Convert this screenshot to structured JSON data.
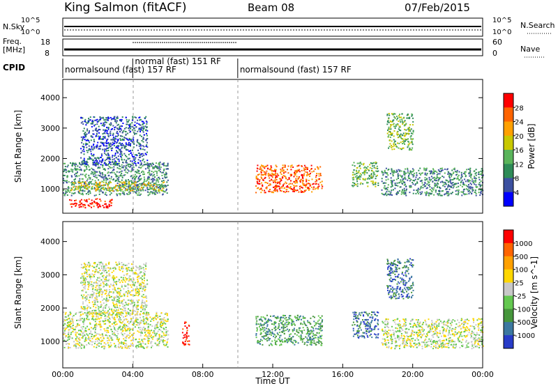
{
  "header": {
    "station": "King Salmon (fitACF)",
    "beam": "Beam 08",
    "date": "07/Feb/2015"
  },
  "strips": {
    "nsky_label": "N.Sky",
    "nsearch_label": "N.Search",
    "nsky_ticks": [
      "10^5",
      "10^0"
    ],
    "nsearch_ticks": [
      "10^5",
      "10^0"
    ],
    "freq_label_1": "Freq.",
    "freq_label_2": "[MHz]",
    "freq_ticks": [
      "18",
      "8"
    ],
    "nave_label": "Nave",
    "nave_ticks": [
      "60",
      "0"
    ],
    "cpid_label": "CPID"
  },
  "cpid_segments": [
    {
      "start": 0.0,
      "end": 4.0,
      "label": "normalsound (fast) 157 RF"
    },
    {
      "start": 4.0,
      "end": 10.0,
      "label": "normal (fast) 151 RF"
    },
    {
      "start": 10.0,
      "end": 24.0,
      "label": "normalsound (fast) 157 RF"
    }
  ],
  "colors": {
    "power": [
      "#0000ff",
      "#3c50a0",
      "#2e8b57",
      "#5ab45a",
      "#c8c800",
      "#ffa000",
      "#ff6400",
      "#ff0000"
    ],
    "velocity": [
      "#283cc8",
      "#3c78a0",
      "#46963c",
      "#64c850",
      "#c8c8c8",
      "#ffd700",
      "#ffa000",
      "#ff6400",
      "#ff0000"
    ]
  },
  "chart_data": [
    {
      "type": "heatmap",
      "quantity": "Power",
      "ylabel": "Slant Range [km]",
      "colorbar_label": "Power [dB]",
      "colorbar_ticks": [
        "28",
        "24",
        "20",
        "16",
        "12",
        "8",
        "4"
      ],
      "colorbar_range": [
        0,
        32
      ],
      "xlim": [
        0,
        24
      ],
      "ylim": [
        200,
        4600
      ],
      "yticks": [
        "1000",
        "2000",
        "3000",
        "4000"
      ],
      "xticks": [
        "00:00",
        "04:00",
        "08:00",
        "12:00",
        "16:00",
        "20:00",
        "00:00"
      ],
      "xlabel": "Time UT",
      "echo_regions": [
        {
          "t0": 0.0,
          "t1": 6.0,
          "r0": 800,
          "r1": 1900,
          "level": 2
        },
        {
          "t0": 0.4,
          "t1": 5.8,
          "r0": 950,
          "r1": 1250,
          "level": 4
        },
        {
          "t0": 1.0,
          "t1": 4.8,
          "r0": 1800,
          "r1": 3400,
          "level": 1
        },
        {
          "t0": 0.3,
          "t1": 2.8,
          "r0": 400,
          "r1": 700,
          "level": 7
        },
        {
          "t0": 11.0,
          "t1": 14.8,
          "r0": 900,
          "r1": 1800,
          "level": 6
        },
        {
          "t0": 16.5,
          "t1": 18.0,
          "r0": 1100,
          "r1": 1900,
          "level": 3
        },
        {
          "t0": 18.2,
          "t1": 24.0,
          "r0": 800,
          "r1": 1700,
          "level": 2
        },
        {
          "t0": 18.5,
          "t1": 20.0,
          "r0": 2300,
          "r1": 3500,
          "level": 3
        }
      ]
    },
    {
      "type": "heatmap",
      "quantity": "Velocity",
      "ylabel": "Slant Range [km]",
      "colorbar_label": "Velocity [m s^-1]",
      "colorbar_ticks": [
        "1000",
        "500",
        "100",
        "25",
        "-25",
        "-100",
        "-500",
        "-1000"
      ],
      "colorbar_range": [
        -1000,
        1000
      ],
      "xlim": [
        0,
        24
      ],
      "ylim": [
        200,
        4600
      ],
      "yticks": [
        "1000",
        "2000",
        "3000",
        "4000"
      ],
      "xticks": [
        "00:00",
        "04:00",
        "08:00",
        "12:00",
        "16:00",
        "20:00",
        "00:00"
      ],
      "xlabel": "Time UT",
      "echo_regions": [
        {
          "t0": 0.0,
          "t1": 6.0,
          "r0": 800,
          "r1": 1900,
          "level": 4
        },
        {
          "t0": 1.0,
          "t1": 4.8,
          "r0": 1800,
          "r1": 3400,
          "level": 4
        },
        {
          "t0": 11.0,
          "t1": 14.8,
          "r0": 900,
          "r1": 1800,
          "level": 2
        },
        {
          "t0": 16.5,
          "t1": 18.0,
          "r0": 1100,
          "r1": 1900,
          "level": 1
        },
        {
          "t0": 18.2,
          "t1": 24.0,
          "r0": 800,
          "r1": 1700,
          "level": 4
        },
        {
          "t0": 18.5,
          "t1": 20.0,
          "r0": 2300,
          "r1": 3500,
          "level": 1
        },
        {
          "t0": 6.8,
          "t1": 7.2,
          "r0": 900,
          "r1": 1600,
          "level": 8
        }
      ]
    }
  ]
}
